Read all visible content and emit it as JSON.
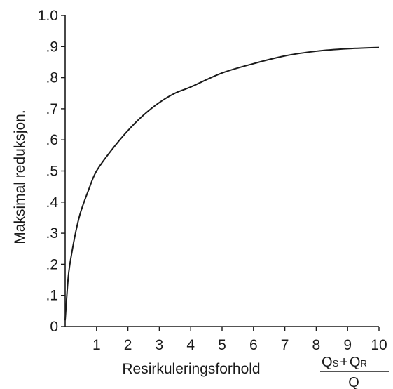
{
  "chart_data": {
    "type": "line",
    "title": "",
    "xlabel": "Resirkuleringsforhold",
    "xlabel_fraction": {
      "numerator": {
        "q1": "Q",
        "s1": "S",
        "plus": "+",
        "q2": "Q",
        "s2": "R"
      },
      "denominator": "Q"
    },
    "ylabel": "Maksimal reduksjon.",
    "xlim": [
      0,
      10
    ],
    "ylim": [
      0,
      1.0
    ],
    "x_ticks": [
      1,
      2,
      3,
      4,
      5,
      6,
      7,
      8,
      9,
      10
    ],
    "x_tick_labels": [
      "1",
      "2",
      "3",
      "4",
      "5",
      "6",
      "7",
      "8",
      "9",
      "10"
    ],
    "y_ticks": [
      0,
      0.1,
      0.2,
      0.3,
      0.4,
      0.5,
      0.6,
      0.7,
      0.8,
      0.9,
      1.0
    ],
    "y_tick_labels": [
      "0",
      ".1",
      ".2",
      ".3",
      ".4",
      ".5",
      ".6",
      ".7",
      ".8",
      ".9",
      "1.0"
    ],
    "grid": false,
    "series": [
      {
        "x": [
          0,
          0.1,
          0.2,
          0.35,
          0.5,
          0.75,
          1,
          1.5,
          2,
          2.5,
          3,
          3.5,
          4,
          5,
          6,
          7,
          8,
          9,
          10
        ],
        "values": [
          0.02,
          0.16,
          0.23,
          0.31,
          0.37,
          0.44,
          0.5,
          0.57,
          0.63,
          0.68,
          0.72,
          0.75,
          0.77,
          0.815,
          0.845,
          0.87,
          0.885,
          0.893,
          0.897
        ],
        "color": "#1a1a1a"
      }
    ]
  }
}
